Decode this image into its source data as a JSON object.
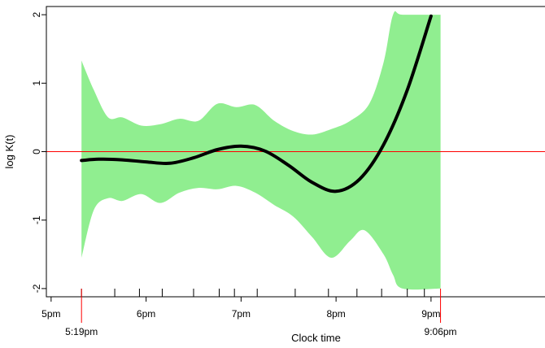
{
  "chart_data": {
    "type": "area",
    "title": "",
    "xlabel": "Clock time",
    "ylabel": "log K(t)",
    "x_unit": "hours since midnight",
    "xlim": [
      16.95,
      22.2
    ],
    "ylim": [
      -2.12,
      2.12
    ],
    "yticks": [
      -2,
      -1,
      0,
      1,
      2
    ],
    "ytick_labels": [
      "-2",
      "-1",
      "0",
      "1",
      "2"
    ],
    "xticks": [
      17,
      18,
      19,
      20,
      21
    ],
    "xtick_labels": [
      "5pm",
      "6pm",
      "7pm",
      "8pm",
      "9pm"
    ],
    "rug_x": [
      17.32,
      17.67,
      17.93,
      18.17,
      18.5,
      18.77,
      18.93,
      19.17,
      19.57,
      19.92,
      20.22,
      20.48,
      20.75,
      20.93
    ],
    "start_marker": {
      "x": 17.32,
      "label": "5:19pm"
    },
    "end_marker": {
      "x": 21.1,
      "label": "9:06pm"
    },
    "reference_line": {
      "y": 0,
      "color": "#ff0000"
    },
    "band_color": "#90ee90",
    "line_color": "#000000",
    "grid": false,
    "series": [
      {
        "role": "estimate",
        "x": [
          17.32,
          17.5,
          17.75,
          18.0,
          18.25,
          18.5,
          18.75,
          19.0,
          19.25,
          19.5,
          19.75,
          20.0,
          20.25,
          20.5,
          20.75,
          21.0
        ],
        "y": [
          -0.13,
          -0.11,
          -0.12,
          -0.15,
          -0.17,
          -0.09,
          0.03,
          0.08,
          0.01,
          -0.2,
          -0.45,
          -0.58,
          -0.4,
          0.1,
          0.9,
          1.98
        ]
      },
      {
        "role": "band_upper",
        "x": [
          17.32,
          17.45,
          17.6,
          17.75,
          17.95,
          18.15,
          18.35,
          18.55,
          18.75,
          18.95,
          19.15,
          19.35,
          19.55,
          19.75,
          19.95,
          20.15,
          20.35,
          20.5,
          20.6,
          20.7,
          21.1
        ],
        "y": [
          1.33,
          0.9,
          0.5,
          0.5,
          0.38,
          0.4,
          0.48,
          0.45,
          0.7,
          0.65,
          0.68,
          0.45,
          0.3,
          0.25,
          0.33,
          0.45,
          0.7,
          1.3,
          2.0,
          2.0,
          2.0
        ]
      },
      {
        "role": "band_lower",
        "x": [
          17.32,
          17.45,
          17.6,
          17.75,
          17.95,
          18.15,
          18.35,
          18.55,
          18.75,
          18.95,
          19.15,
          19.35,
          19.55,
          19.75,
          19.95,
          20.15,
          20.3,
          20.5,
          20.6,
          20.7,
          21.1
        ],
        "y": [
          -1.55,
          -0.85,
          -0.68,
          -0.72,
          -0.62,
          -0.75,
          -0.6,
          -0.53,
          -0.55,
          -0.5,
          -0.6,
          -0.78,
          -0.95,
          -1.25,
          -1.55,
          -1.3,
          -1.15,
          -1.5,
          -1.8,
          -2.0,
          -2.0
        ]
      }
    ]
  }
}
